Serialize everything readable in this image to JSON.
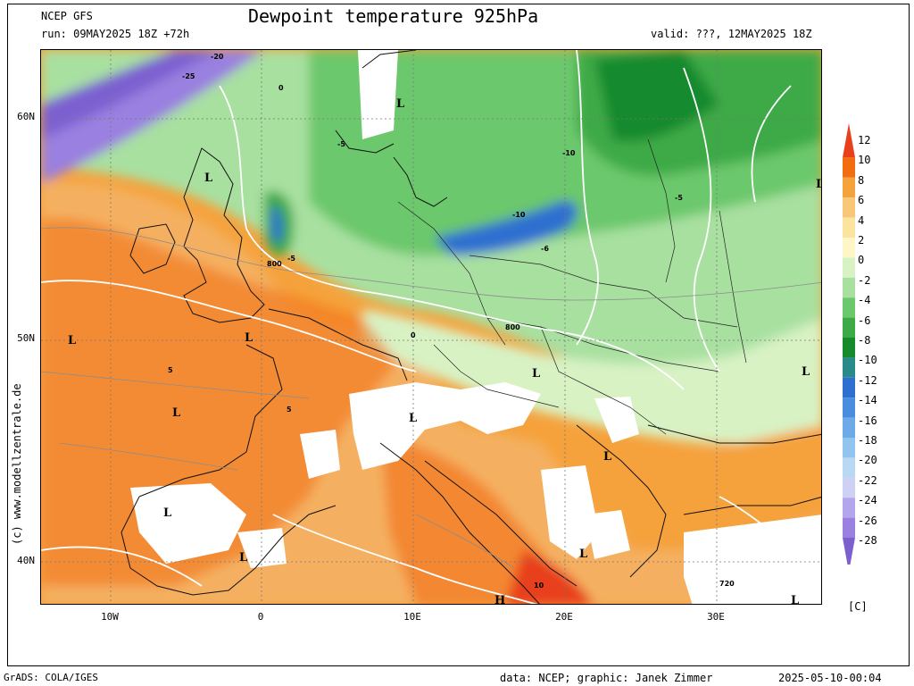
{
  "header": {
    "model": "NCEP GFS",
    "title": "Dewpoint temperature 925hPa",
    "run": "run: 09MAY2025 18Z +72h",
    "valid": "valid: ???, 12MAY2025 18Z"
  },
  "footer": {
    "grads": "GrADS: COLA/IGES",
    "data_credit": "data: NCEP; graphic: Janek Zimmer",
    "timestamp": "2025-05-10-00:04"
  },
  "side_credit": "(c) www.modellzentrale.de",
  "axes": {
    "lat_ticks": [
      "60N",
      "50N",
      "40N"
    ],
    "lon_ticks": [
      "10W",
      "0",
      "10E",
      "20E",
      "30E"
    ]
  },
  "map": {
    "contour_labels": [
      "-20",
      "-25",
      "0",
      "-5",
      "-10",
      "-5",
      "-10",
      "-6",
      "-5",
      "800",
      "800",
      "5",
      "0",
      "5",
      "10",
      "720"
    ],
    "pressure_marks": [
      "L",
      "L",
      "L",
      "L",
      "L",
      "L",
      "L",
      "L",
      "L",
      "L",
      "L",
      "L",
      "L",
      "H",
      "L"
    ]
  },
  "colorbar": {
    "unit": "[C]",
    "labels": [
      "12",
      "10",
      "8",
      "6",
      "4",
      "2",
      "0",
      "-2",
      "-4",
      "-6",
      "-8",
      "-10",
      "-12",
      "-14",
      "-16",
      "-18",
      "-20",
      "-22",
      "-24",
      "-26",
      "-28"
    ],
    "colors": [
      "#e8401c",
      "#f26d10",
      "#f5a23c",
      "#f8c878",
      "#fbe4a0",
      "#fff6c8",
      "#d8f2c4",
      "#a8e0a0",
      "#6cc86c",
      "#3caa46",
      "#178a2e",
      "#2a8a8a",
      "#2e6fd0",
      "#4a8de0",
      "#6eaae8",
      "#92c4f0",
      "#b8d8f4",
      "#cdd2f4",
      "#b4a6ec",
      "#9a80e0",
      "#7c60d0"
    ]
  }
}
